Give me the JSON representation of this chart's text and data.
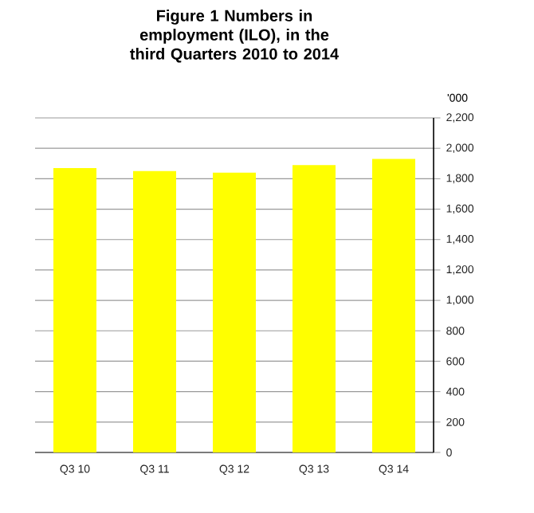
{
  "chart_data": {
    "type": "bar",
    "title": "Figure  1 Numbers in employment (ILO), in the third Quarters 2010 to 2014",
    "ylabel": "'000",
    "categories": [
      "Q3 10",
      "Q3 11",
      "Q3 12",
      "Q3 13",
      "Q3 14"
    ],
    "values": [
      1870,
      1850,
      1840,
      1890,
      1930
    ],
    "color": "#ffff00",
    "ylim": [
      0,
      2200
    ],
    "yticks": [
      {
        "value": 0,
        "label": "0"
      },
      {
        "value": 200,
        "label": "200"
      },
      {
        "value": 400,
        "label": "400"
      },
      {
        "value": 600,
        "label": "600"
      },
      {
        "value": 800,
        "label": "800"
      },
      {
        "value": 1000,
        "label": "1,000"
      },
      {
        "value": 1200,
        "label": "1,200"
      },
      {
        "value": 1400,
        "label": "1,400"
      },
      {
        "value": 1600,
        "label": "1,600"
      },
      {
        "value": 1800,
        "label": "1,800"
      },
      {
        "value": 2000,
        "label": "2,000"
      },
      {
        "value": 2200,
        "label": "2,200"
      }
    ],
    "grid": "y"
  }
}
